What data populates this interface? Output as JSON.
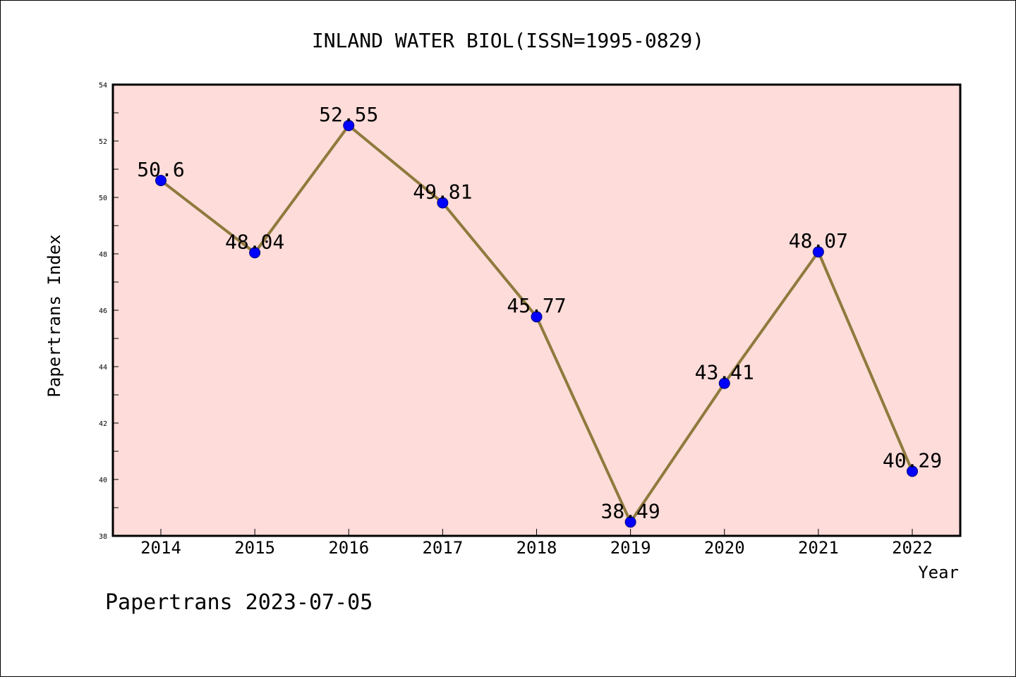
{
  "chart_data": {
    "type": "line",
    "title": "INLAND WATER BIOL(ISSN=1995-0829)",
    "xlabel": "Year",
    "ylabel": "Papertrans Index",
    "categories": [
      "2014",
      "2015",
      "2016",
      "2017",
      "2018",
      "2019",
      "2020",
      "2021",
      "2022"
    ],
    "series": [
      {
        "values": [
          50.6,
          48.04,
          52.55,
          49.81,
          45.77,
          38.49,
          43.41,
          48.07,
          40.29
        ],
        "data_labels": [
          "50.6",
          "48.04",
          "52.55",
          "49.81",
          "45.77",
          "38.49",
          "43.41",
          "48.07",
          "40.29"
        ]
      }
    ],
    "ylim": [
      38,
      54
    ],
    "yticks": [
      "38",
      "40",
      "42",
      "44",
      "46",
      "48",
      "50",
      "52",
      "54"
    ],
    "grid": false,
    "legend": "none",
    "colors": {
      "plot_background": "#fddcd9",
      "line": "#8f7a3d",
      "marker": "#0000ff",
      "marker_edge": "#00007a"
    }
  },
  "footer": {
    "text": "Papertrans 2023-07-05"
  }
}
